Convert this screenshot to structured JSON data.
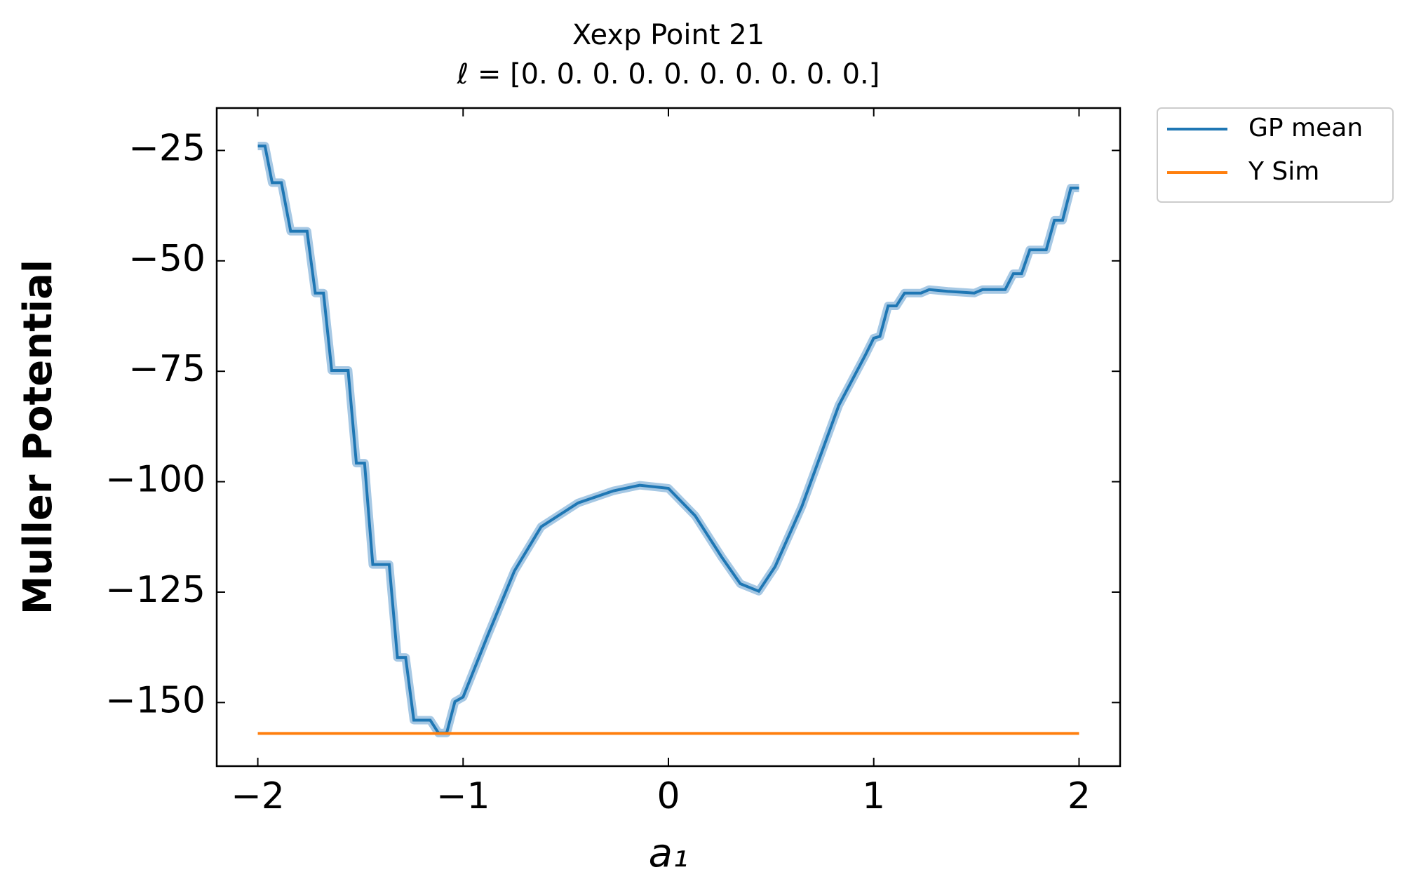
{
  "chart_data": {
    "type": "line",
    "title": "Xexp Point 21",
    "subtitle": "ℓ = [0. 0. 0. 0. 0. 0. 0. 0. 0. 0.]",
    "x_label": "a₁",
    "y_label": "Muller Potential",
    "xlim": [
      -2.2,
      2.2
    ],
    "ylim": [
      -164.4,
      -15.4
    ],
    "xticks": [
      {
        "value": -2,
        "label": "−2"
      },
      {
        "value": -1,
        "label": "−1"
      },
      0,
      1,
      2
    ],
    "yticks": [
      {
        "value": -150,
        "label": "−150"
      },
      {
        "value": -125,
        "label": "−125"
      },
      {
        "value": -100,
        "label": "−100"
      },
      {
        "value": -75,
        "label": "−75"
      },
      {
        "value": -50,
        "label": "−50"
      },
      {
        "value": -25,
        "label": "−25"
      }
    ],
    "grid": false,
    "legend": "outside-upper-right",
    "series": [
      {
        "name": "GP mean",
        "color": "#1f77b4",
        "band_color": "#a6c8e4",
        "x": [
          -2,
          -1.965,
          -1.93,
          -1.885,
          -1.84,
          -1.76,
          -1.72,
          -1.68,
          -1.64,
          -1.56,
          -1.52,
          -1.48,
          -1.44,
          -1.36,
          -1.32,
          -1.28,
          -1.24,
          -1.16,
          -1.12,
          -1.08,
          -1.04,
          -1.0,
          -0.88,
          -0.75,
          -0.62,
          -0.44,
          -0.27,
          -0.14,
          0,
          0.13,
          0.26,
          0.35,
          0.44,
          0.52,
          0.65,
          0.83,
          0.96,
          1.0,
          1.03,
          1.07,
          1.11,
          1.15,
          1.23,
          1.27,
          1.36,
          1.49,
          1.53,
          1.64,
          1.68,
          1.72,
          1.76,
          1.84,
          1.88,
          1.92,
          1.96,
          2.0
        ],
        "values": [
          -24,
          -24,
          -32.3,
          -32.3,
          -43.3,
          -43.3,
          -57.3,
          -57.3,
          -74.8,
          -74.8,
          -95.8,
          -95.8,
          -118.75,
          -118.75,
          -139.8,
          -139.8,
          -154,
          -154,
          -156.9,
          -156.9,
          -149.8,
          -148.75,
          -134.8,
          -120.2,
          -110.2,
          -104.8,
          -102.1,
          -100.8,
          -101.5,
          -107.7,
          -117.1,
          -123.1,
          -124.8,
          -119.2,
          -105.6,
          -82.7,
          -71.25,
          -67.5,
          -67.1,
          -60.2,
          -60.2,
          -57.3,
          -57.3,
          -56.5,
          -56.9,
          -57.3,
          -56.5,
          -56.5,
          -52.9,
          -52.9,
          -47.5,
          -47.5,
          -40.8,
          -40.8,
          -33.5,
          -33.5
        ]
      },
      {
        "name": "Y Sim",
        "color": "#ff7f0e",
        "x": [
          -2,
          2
        ],
        "values": [
          -157,
          -157
        ]
      }
    ]
  }
}
